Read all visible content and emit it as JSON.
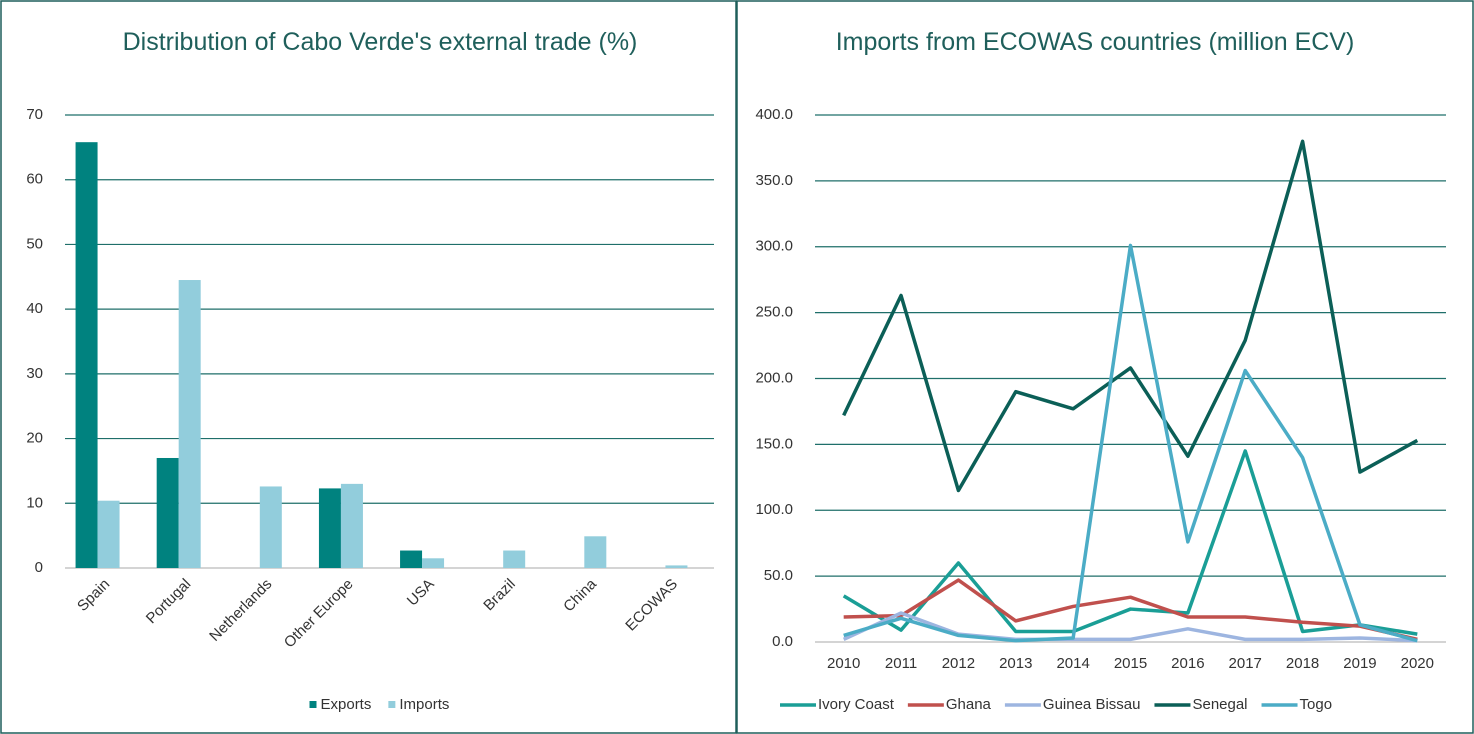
{
  "chart_data": [
    {
      "type": "bar",
      "title": "Distribution of Cabo Verde's external trade (%)",
      "categories": [
        "Spain",
        "Portugal",
        "Netherlands",
        "Other Europe",
        "USA",
        "Brazil",
        "China",
        "ECOWAS"
      ],
      "series": [
        {
          "name": "Exports",
          "color": "#00827f",
          "values": [
            65.8,
            17,
            0,
            12.3,
            2.7,
            0,
            0,
            0
          ]
        },
        {
          "name": "Imports",
          "color": "#92cddc",
          "values": [
            10.4,
            44.5,
            12.6,
            13.0,
            1.5,
            2.7,
            4.9,
            0.4
          ]
        }
      ],
      "ylim": [
        0,
        70
      ],
      "yticks": [
        0,
        10,
        20,
        30,
        40,
        50,
        60,
        70
      ],
      "grid": true,
      "legend": "bottom"
    },
    {
      "type": "line",
      "title": "Imports from ECOWAS countries (million ECV)",
      "categories": [
        "2010",
        "2011",
        "2012",
        "2013",
        "2014",
        "2015",
        "2016",
        "2017",
        "2018",
        "2019",
        "2020"
      ],
      "series": [
        {
          "name": "Ivory Coast",
          "color": "#1a9e96",
          "values": [
            35,
            9,
            60,
            8,
            8,
            25,
            22,
            145,
            8,
            13,
            6
          ]
        },
        {
          "name": "Ghana",
          "color": "#c0504d",
          "values": [
            19,
            20,
            47,
            16,
            27,
            34,
            19,
            19,
            15,
            12,
            2
          ]
        },
        {
          "name": "Guinea Bissau",
          "color": "#9db5e0",
          "values": [
            2,
            22,
            6,
            2,
            2,
            2,
            10,
            2,
            2,
            3,
            1
          ]
        },
        {
          "name": "Senegal",
          "color": "#0b5f57",
          "values": [
            172,
            263,
            115,
            190,
            177,
            208,
            141,
            229,
            380,
            129,
            153
          ]
        },
        {
          "name": "Togo",
          "color": "#4bacc6",
          "values": [
            5,
            18,
            5,
            1,
            3,
            301,
            76,
            206,
            140,
            13,
            1
          ]
        }
      ],
      "ylim": [
        0,
        400
      ],
      "yticks": [
        {
          "value": 0,
          "label": "0.0"
        },
        {
          "value": 50,
          "label": "50.0"
        },
        {
          "value": 100,
          "label": "100.0"
        },
        {
          "value": 150,
          "label": "150.0"
        },
        {
          "value": 200,
          "label": "200.0"
        },
        {
          "value": 250,
          "label": "250.0"
        },
        {
          "value": 300,
          "label": "300.0"
        },
        {
          "value": 350,
          "label": "350.0"
        },
        {
          "value": 400,
          "label": "400.0"
        }
      ],
      "grid": true,
      "legend": "bottom"
    }
  ]
}
